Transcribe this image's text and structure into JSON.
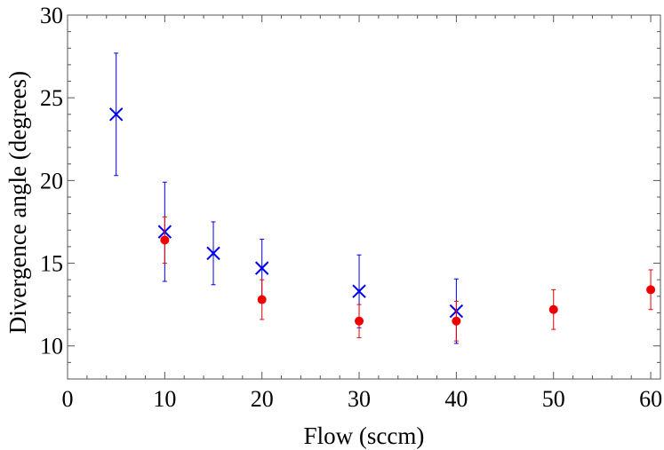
{
  "chart_data": {
    "type": "scatter",
    "title": "",
    "xlabel": "Flow (sccm)",
    "ylabel": "Divergence angle (degrees)",
    "xlim": [
      0,
      61
    ],
    "ylim": [
      8,
      30
    ],
    "xticks": [
      0,
      10,
      20,
      30,
      40,
      50,
      60
    ],
    "yticks": [
      10,
      15,
      20,
      25,
      30
    ],
    "x_minor_step": 2,
    "y_minor_step": 1,
    "grid": false,
    "legend": "none",
    "series": [
      {
        "marker": "cross",
        "color": "#0000ee",
        "points": [
          {
            "x": 5,
            "y": 24.0,
            "err": 3.7
          },
          {
            "x": 10,
            "y": 16.9,
            "err": 3.0
          },
          {
            "x": 15,
            "y": 15.6,
            "err": 1.9
          },
          {
            "x": 20,
            "y": 14.7,
            "err": 1.75
          },
          {
            "x": 30,
            "y": 13.3,
            "err": 2.2
          },
          {
            "x": 40,
            "y": 12.1,
            "err": 1.95
          }
        ]
      },
      {
        "marker": "dot",
        "color": "#ee0000",
        "points": [
          {
            "x": 10,
            "y": 16.4,
            "err": 1.4
          },
          {
            "x": 20,
            "y": 12.8,
            "err": 1.2
          },
          {
            "x": 30,
            "y": 11.5,
            "err": 1.0
          },
          {
            "x": 40,
            "y": 11.5,
            "err": 1.2
          },
          {
            "x": 50,
            "y": 12.2,
            "err": 1.2
          },
          {
            "x": 60,
            "y": 13.4,
            "err": 1.2
          }
        ]
      }
    ]
  }
}
